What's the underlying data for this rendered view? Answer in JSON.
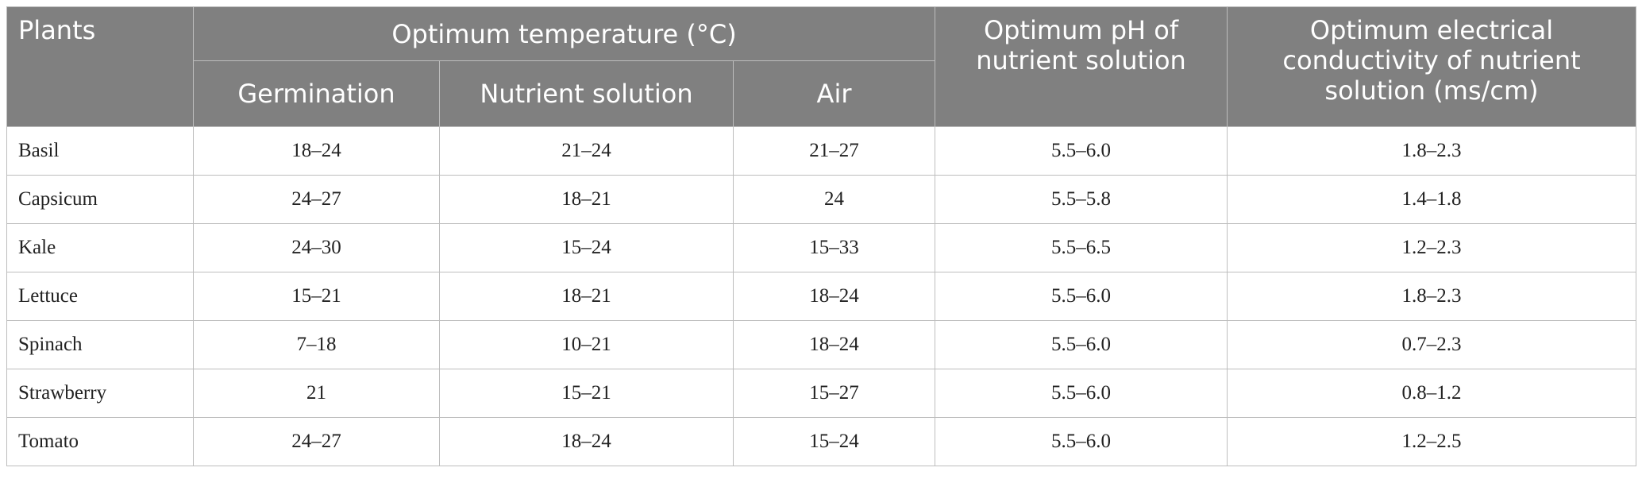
{
  "table": {
    "headers": {
      "plants": "Plants",
      "temperature_group": "Optimum temperature (°C)",
      "germination": "Germination",
      "nutrient_solution": "Nutrient solution",
      "air": "Air",
      "ph": "Optimum pH of nutrient solution",
      "ec": "Optimum electrical conductivity of nutrient solution (ms/cm)"
    },
    "rows": [
      {
        "plant": "Basil",
        "germination": "18–24",
        "nutrient": "21–24",
        "air": "21–27",
        "ph": "5.5–6.0",
        "ec": "1.8–2.3"
      },
      {
        "plant": "Capsicum",
        "germination": "24–27",
        "nutrient": "18–21",
        "air": "24",
        "ph": "5.5–5.8",
        "ec": "1.4–1.8"
      },
      {
        "plant": "Kale",
        "germination": "24–30",
        "nutrient": "15–24",
        "air": "15–33",
        "ph": "5.5–6.5",
        "ec": "1.2–2.3"
      },
      {
        "plant": "Lettuce",
        "germination": "15–21",
        "nutrient": "18–21",
        "air": "18–24",
        "ph": "5.5–6.0",
        "ec": "1.8–2.3"
      },
      {
        "plant": "Spinach",
        "germination": "7–18",
        "nutrient": "10–21",
        "air": "18–24",
        "ph": "5.5–6.0",
        "ec": "0.7–2.3"
      },
      {
        "plant": "Strawberry",
        "germination": "21",
        "nutrient": "15–21",
        "air": "15–27",
        "ph": "5.5–6.0",
        "ec": "0.8–1.2"
      },
      {
        "plant": "Tomato",
        "germination": "24–27",
        "nutrient": "18–24",
        "air": "15–24",
        "ph": "5.5–6.0",
        "ec": "1.2–2.5"
      }
    ]
  }
}
